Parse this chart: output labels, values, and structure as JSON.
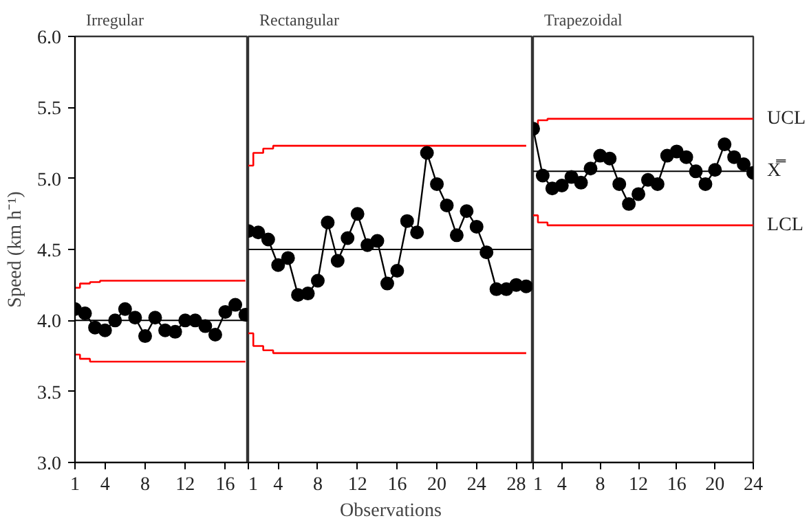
{
  "chart_data": [
    {
      "type": "line",
      "title": "Irregular",
      "ylabel": "Speed (km h⁻¹)",
      "x": [
        1,
        2,
        3,
        4,
        5,
        6,
        7,
        8,
        9,
        10,
        11,
        12,
        13,
        14,
        15,
        16,
        17,
        18
      ],
      "xlim": [
        1,
        18.3
      ],
      "xticks": [
        1,
        4,
        8,
        12,
        16
      ],
      "ylim": [
        3.0,
        6.0
      ],
      "yticks": [
        {
          "value": 3.0,
          "label": "3.0"
        },
        {
          "value": 3.5,
          "label": "3.5"
        },
        {
          "value": 4.0,
          "label": "4.0"
        },
        {
          "value": 4.5,
          "label": "4.5"
        },
        {
          "value": 5.0,
          "label": "5.0"
        },
        {
          "value": 5.5,
          "label": "5.5"
        },
        {
          "value": 6.0,
          "label": "6.0"
        }
      ],
      "grid": false,
      "series": [
        {
          "color": "#000000",
          "marker": "circle",
          "values": [
            4.08,
            4.05,
            3.95,
            3.93,
            4.0,
            4.08,
            4.02,
            3.89,
            4.02,
            3.93,
            3.92,
            4.0,
            4.0,
            3.96,
            3.9,
            4.06,
            4.11,
            4.04
          ]
        },
        {
          "type": "step",
          "color": "#ff0000",
          "marker": "none",
          "values": [
            4.23,
            4.26,
            4.27,
            4.28,
            4.28,
            4.28,
            4.28,
            4.28,
            4.28,
            4.28,
            4.28,
            4.28,
            4.28,
            4.28,
            4.28,
            4.28,
            4.28,
            4.28
          ]
        },
        {
          "type": "step",
          "color": "#ff0000",
          "marker": "none",
          "values": [
            3.76,
            3.73,
            3.71,
            3.71,
            3.71,
            3.71,
            3.71,
            3.71,
            3.71,
            3.71,
            3.71,
            3.71,
            3.71,
            3.71,
            3.71,
            3.71,
            3.71,
            3.71
          ]
        }
      ],
      "ref_lines": [
        {
          "axis": "y",
          "value": 4.0,
          "color": "#000000"
        }
      ]
    },
    {
      "type": "line",
      "title": "Rectangular",
      "xlabel": "Observations",
      "tick_labels": "x",
      "x": [
        1,
        2,
        3,
        4,
        5,
        6,
        7,
        8,
        9,
        10,
        11,
        12,
        13,
        14,
        15,
        16,
        17,
        18,
        19,
        20,
        21,
        22,
        23,
        24,
        25,
        26,
        27,
        28,
        29
      ],
      "xlim": [
        1,
        29.7
      ],
      "xticks": [
        1,
        4,
        8,
        12,
        16,
        20,
        24,
        28
      ],
      "ylim": [
        3.0,
        6.0
      ],
      "grid": false,
      "series": [
        {
          "color": "#000000",
          "marker": "circle",
          "values": [
            4.63,
            4.62,
            4.57,
            4.39,
            4.44,
            4.18,
            4.19,
            4.28,
            4.69,
            4.42,
            4.58,
            4.75,
            4.53,
            4.56,
            4.26,
            4.35,
            4.7,
            4.62,
            5.18,
            4.96,
            4.81,
            4.6,
            4.77,
            4.66,
            4.48,
            4.22,
            4.22,
            4.25,
            4.24
          ]
        },
        {
          "type": "step",
          "color": "#ff0000",
          "marker": "none",
          "values": [
            5.09,
            5.18,
            5.21,
            5.23,
            5.23,
            5.23,
            5.23,
            5.23,
            5.23,
            5.23,
            5.23,
            5.23,
            5.23,
            5.23,
            5.23,
            5.23,
            5.23,
            5.23,
            5.23,
            5.23,
            5.23,
            5.23,
            5.23,
            5.23,
            5.23,
            5.23,
            5.23,
            5.23,
            5.23
          ]
        },
        {
          "type": "step",
          "color": "#ff0000",
          "marker": "none",
          "values": [
            3.91,
            3.82,
            3.79,
            3.77,
            3.77,
            3.77,
            3.77,
            3.77,
            3.77,
            3.77,
            3.77,
            3.77,
            3.77,
            3.77,
            3.77,
            3.77,
            3.77,
            3.77,
            3.77,
            3.77,
            3.77,
            3.77,
            3.77,
            3.77,
            3.77,
            3.77,
            3.77,
            3.77,
            3.77
          ]
        }
      ],
      "ref_lines": [
        {
          "axis": "y",
          "value": 4.5,
          "color": "#000000"
        }
      ]
    },
    {
      "type": "line",
      "title": "Trapezoidal",
      "tick_labels": "x",
      "x": [
        1,
        2,
        3,
        4,
        5,
        6,
        7,
        8,
        9,
        10,
        11,
        12,
        13,
        14,
        15,
        16,
        17,
        18,
        19,
        20,
        21,
        22,
        23,
        24
      ],
      "xlim": [
        1,
        24
      ],
      "xticks": [
        1,
        4,
        8,
        12,
        16,
        20,
        24
      ],
      "ylim": [
        3.0,
        6.0
      ],
      "grid": false,
      "series": [
        {
          "color": "#000000",
          "marker": "circle",
          "values": [
            5.35,
            5.02,
            4.93,
            4.95,
            5.01,
            4.97,
            5.07,
            5.16,
            5.14,
            4.96,
            4.82,
            4.89,
            4.99,
            4.96,
            5.16,
            5.19,
            5.15,
            5.05,
            4.96,
            5.06,
            5.24,
            5.15,
            5.1,
            5.04
          ]
        },
        {
          "type": "step",
          "name": "UCL",
          "color": "#ff0000",
          "marker": "none",
          "values": [
            5.37,
            5.41,
            5.42,
            5.42,
            5.42,
            5.42,
            5.42,
            5.42,
            5.42,
            5.42,
            5.42,
            5.42,
            5.42,
            5.42,
            5.42,
            5.42,
            5.42,
            5.42,
            5.42,
            5.42,
            5.42,
            5.42,
            5.42,
            5.42
          ]
        },
        {
          "type": "step",
          "name": "LCL",
          "color": "#ff0000",
          "marker": "none",
          "values": [
            4.74,
            4.69,
            4.67,
            4.67,
            4.67,
            4.67,
            4.67,
            4.67,
            4.67,
            4.67,
            4.67,
            4.67,
            4.67,
            4.67,
            4.67,
            4.67,
            4.67,
            4.67,
            4.67,
            4.67,
            4.67,
            4.67,
            4.67,
            4.67
          ]
        }
      ],
      "ref_lines": [
        {
          "axis": "y",
          "value": 5.05,
          "label": "X̿",
          "color": "#000000"
        }
      ]
    }
  ]
}
